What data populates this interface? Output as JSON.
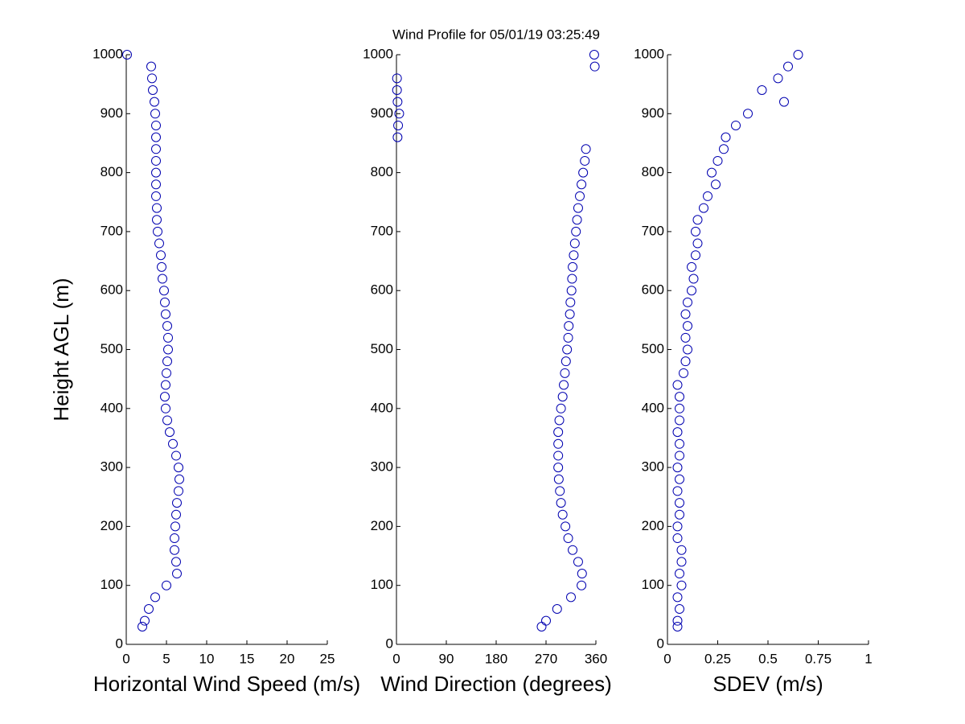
{
  "chart_data": [
    {
      "type": "scatter",
      "title": "Wind Profile for  05/01/19 03:25:49",
      "ylabel": "Height AGL (m)",
      "xlabel": "Horizontal Wind Speed (m/s)",
      "color": "#0000b0",
      "x": [
        2.0,
        2.3,
        2.8,
        3.6,
        5.0,
        6.3,
        6.2,
        6.0,
        6.0,
        6.1,
        6.2,
        6.3,
        6.5,
        6.6,
        6.5,
        6.2,
        5.8,
        5.4,
        5.1,
        4.9,
        4.8,
        4.9,
        5.0,
        5.1,
        5.2,
        5.2,
        5.1,
        4.9,
        4.8,
        4.7,
        4.5,
        4.4,
        4.3,
        4.1,
        3.9,
        3.8,
        3.8,
        3.7,
        3.7,
        3.7,
        3.7,
        3.7,
        3.7,
        3.7,
        3.6,
        3.5,
        3.3,
        3.2,
        3.1,
        0.1
      ],
      "y": [
        30,
        40,
        60,
        80,
        100,
        120,
        140,
        160,
        180,
        200,
        220,
        240,
        260,
        280,
        300,
        320,
        340,
        360,
        380,
        400,
        420,
        440,
        460,
        480,
        500,
        520,
        540,
        560,
        580,
        600,
        620,
        640,
        660,
        680,
        700,
        720,
        740,
        760,
        780,
        800,
        820,
        840,
        860,
        880,
        900,
        920,
        940,
        960,
        980,
        1000
      ],
      "xlim": [
        0,
        25
      ],
      "xticks": [
        0,
        5,
        10,
        15,
        20,
        25
      ],
      "ylim": [
        0,
        1000
      ],
      "yticks": [
        0,
        100,
        200,
        300,
        400,
        500,
        600,
        700,
        800,
        900,
        1000
      ]
    },
    {
      "type": "scatter",
      "xlabel": "Wind Direction (degrees)",
      "color": "#0000b0",
      "x": [
        262,
        270,
        290,
        315,
        334,
        335,
        328,
        318,
        310,
        305,
        300,
        297,
        295,
        293,
        292,
        292,
        292,
        292,
        294,
        297,
        300,
        302,
        304,
        306,
        308,
        310,
        311,
        313,
        314,
        316,
        317,
        318,
        320,
        322,
        324,
        326,
        328,
        331,
        334,
        337,
        340,
        342,
        2,
        3,
        5,
        2,
        1,
        1,
        358,
        357
      ],
      "y": [
        30,
        40,
        60,
        80,
        100,
        120,
        140,
        160,
        180,
        200,
        220,
        240,
        260,
        280,
        300,
        320,
        340,
        360,
        380,
        400,
        420,
        440,
        460,
        480,
        500,
        520,
        540,
        560,
        580,
        600,
        620,
        640,
        660,
        680,
        700,
        720,
        740,
        760,
        780,
        800,
        820,
        840,
        860,
        880,
        900,
        920,
        940,
        960,
        980,
        1000
      ],
      "xlim": [
        0,
        360
      ],
      "xticks": [
        0,
        90,
        180,
        270,
        360
      ],
      "ylim": [
        0,
        1000
      ],
      "yticks": [
        0,
        100,
        200,
        300,
        400,
        500,
        600,
        700,
        800,
        900,
        1000
      ]
    },
    {
      "type": "scatter",
      "xlabel": "SDEV  (m/s)",
      "color": "#0000b0",
      "x": [
        0.05,
        0.05,
        0.06,
        0.05,
        0.07,
        0.06,
        0.07,
        0.07,
        0.05,
        0.05,
        0.06,
        0.06,
        0.05,
        0.06,
        0.05,
        0.06,
        0.06,
        0.05,
        0.06,
        0.06,
        0.06,
        0.05,
        0.08,
        0.09,
        0.1,
        0.09,
        0.1,
        0.09,
        0.1,
        0.12,
        0.13,
        0.12,
        0.14,
        0.15,
        0.14,
        0.15,
        0.18,
        0.2,
        0.24,
        0.22,
        0.25,
        0.28,
        0.29,
        0.34,
        0.4,
        0.58,
        0.47,
        0.55,
        0.6,
        0.65
      ],
      "y": [
        30,
        40,
        60,
        80,
        100,
        120,
        140,
        160,
        180,
        200,
        220,
        240,
        260,
        280,
        300,
        320,
        340,
        360,
        380,
        400,
        420,
        440,
        460,
        480,
        500,
        520,
        540,
        560,
        580,
        600,
        620,
        640,
        660,
        680,
        700,
        720,
        740,
        760,
        780,
        800,
        820,
        840,
        860,
        880,
        900,
        920,
        940,
        960,
        980,
        1000
      ],
      "xlim": [
        0,
        1
      ],
      "xticks": [
        0,
        {
          "value": 0.25,
          "label": "0.25"
        },
        0.5,
        {
          "value": 0.75,
          "label": "0.75"
        },
        1
      ],
      "ylim": [
        0,
        1000
      ],
      "yticks": [
        0,
        100,
        200,
        300,
        400,
        500,
        600,
        700,
        800,
        900,
        1000
      ]
    }
  ]
}
